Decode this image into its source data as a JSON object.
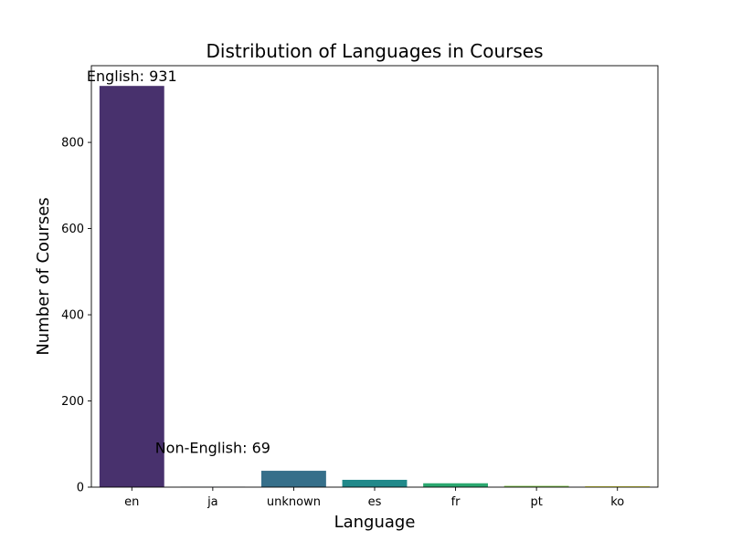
{
  "chart_data": {
    "type": "bar",
    "title": "Distribution of Languages in Courses",
    "xlabel": "Language",
    "ylabel": "Number of Courses",
    "categories": [
      "en",
      "ja",
      "unknown",
      "es",
      "fr",
      "pt",
      "ko"
    ],
    "values": [
      931,
      1,
      38,
      17,
      9,
      3,
      2
    ],
    "colors": [
      "#48316d",
      "#434d84",
      "#366f8a",
      "#21898a",
      "#2ba870",
      "#7fc24e",
      "#e9e52b"
    ],
    "yticks": [
      0,
      200,
      400,
      600,
      800
    ],
    "ylim": [
      0,
      978
    ],
    "grid": false,
    "annotations": [
      {
        "text": "English: 931",
        "x": "en",
        "y": 931
      },
      {
        "text": "Non-English: 69",
        "x": "ja",
        "y": 69
      }
    ]
  }
}
